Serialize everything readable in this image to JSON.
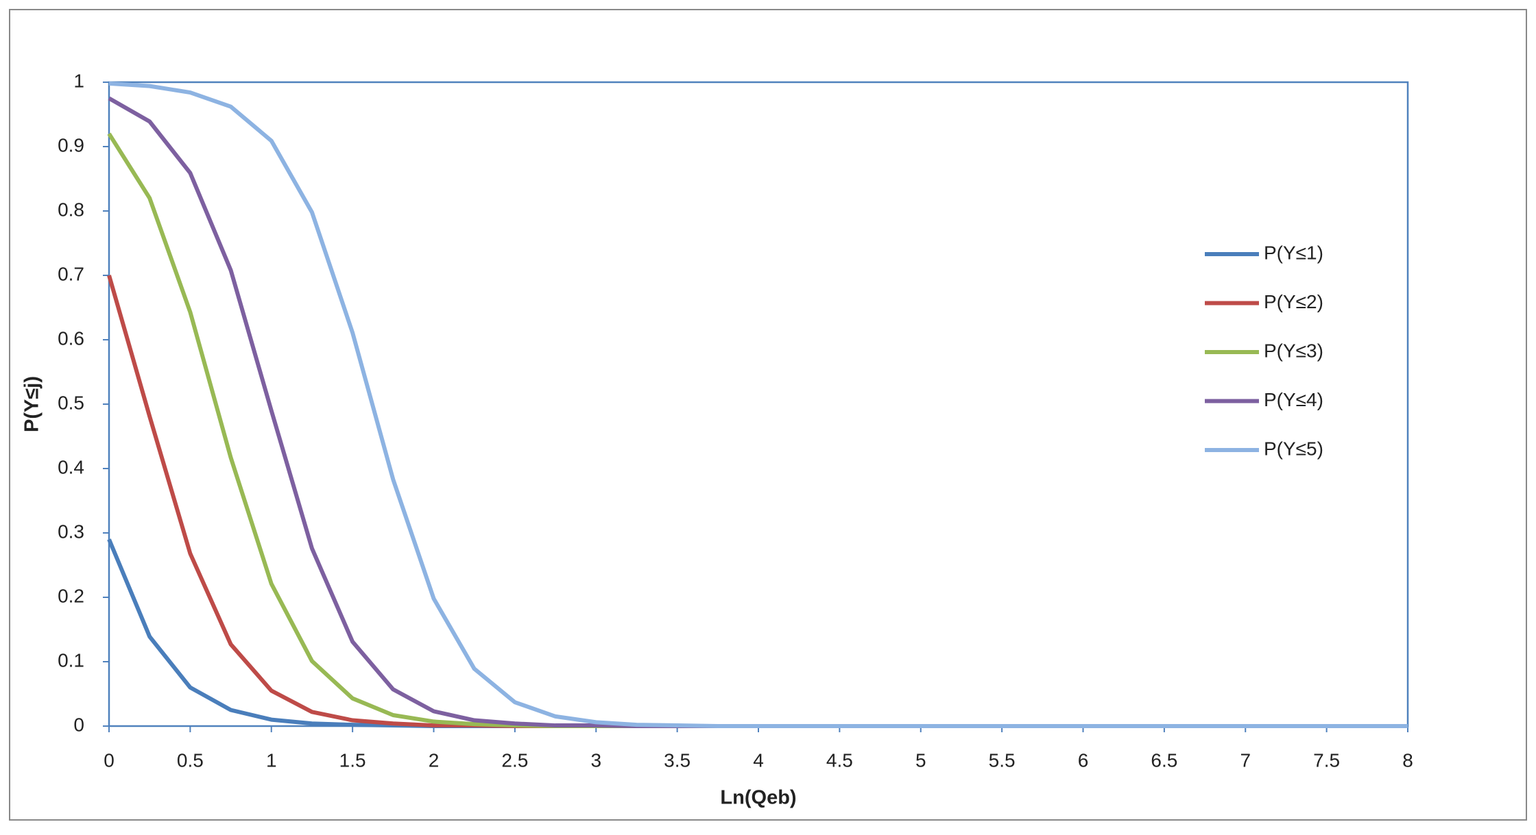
{
  "chart_data": {
    "type": "line",
    "x_label": "Ln(Qeb)",
    "y_label": "P(Y≤j)",
    "x": [
      0,
      0.25,
      0.5,
      0.75,
      1,
      1.25,
      1.5,
      1.75,
      2,
      2.25,
      2.5,
      2.75,
      3,
      3.25,
      3.5,
      3.75,
      4,
      5,
      6,
      7,
      8
    ],
    "series": [
      {
        "name": "P(Y≤1)",
        "color": "#4a7ebb",
        "values": [
          0.29,
          0.139,
          0.06,
          0.025,
          0.01,
          0.004,
          0.002,
          0.001,
          0,
          0,
          0,
          0,
          0,
          0,
          0,
          0,
          0,
          0,
          0,
          0,
          0
        ]
      },
      {
        "name": "P(Y≤2)",
        "color": "#be4b48",
        "values": [
          0.7,
          0.481,
          0.268,
          0.127,
          0.055,
          0.022,
          0.009,
          0.004,
          0.001,
          0.001,
          0,
          0,
          0,
          0,
          0,
          0,
          0,
          0,
          0,
          0,
          0
        ]
      },
      {
        "name": "P(Y≤3)",
        "color": "#98b954",
        "values": [
          0.92,
          0.82,
          0.643,
          0.417,
          0.221,
          0.101,
          0.043,
          0.017,
          0.007,
          0.003,
          0.001,
          0,
          0,
          0,
          0,
          0,
          0,
          0,
          0,
          0,
          0
        ]
      },
      {
        "name": "P(Y≤4)",
        "color": "#7d60a0",
        "values": [
          0.975,
          0.939,
          0.859,
          0.708,
          0.49,
          0.276,
          0.131,
          0.057,
          0.023,
          0.009,
          0.004,
          0.001,
          0.001,
          0,
          0,
          0,
          0,
          0,
          0,
          0,
          0
        ]
      },
      {
        "name": "P(Y≤5)",
        "color": "#8db3e2",
        "values": [
          0.998,
          0.994,
          0.984,
          0.962,
          0.909,
          0.798,
          0.611,
          0.383,
          0.198,
          0.089,
          0.037,
          0.015,
          0.006,
          0.002,
          0.001,
          0,
          0,
          0,
          0,
          0,
          0
        ]
      }
    ],
    "xlim": [
      0,
      8
    ],
    "xticks": [
      0,
      0.5,
      1,
      1.5,
      2,
      2.5,
      3,
      3.5,
      4,
      4.5,
      5,
      5.5,
      6,
      6.5,
      7,
      7.5,
      8
    ],
    "ylim": [
      0,
      1
    ],
    "yticks": [
      0,
      0.1,
      0.2,
      0.3,
      0.4,
      0.5,
      0.6,
      0.7,
      0.8,
      0.9,
      1
    ],
    "grid": false,
    "legend": "right"
  }
}
